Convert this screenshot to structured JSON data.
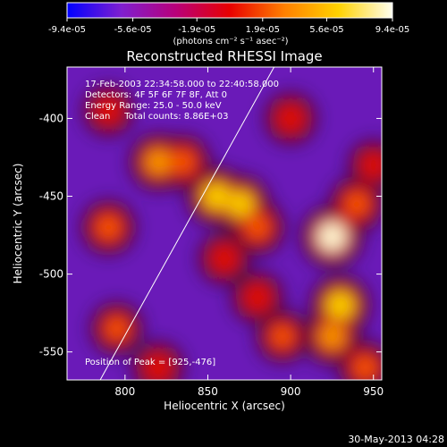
{
  "chart_data": {
    "type": "heatmap",
    "title": "Reconstructed RHESSI Image",
    "xlabel": "Heliocentric X (arcsec)",
    "ylabel": "Heliocentric Y (arcsec)",
    "xlim": [
      765,
      955
    ],
    "ylim": [
      -568,
      -367
    ],
    "x_ticks": [
      "800",
      "850",
      "900",
      "950"
    ],
    "y_ticks": [
      "-400",
      "-450",
      "-500",
      "-550"
    ],
    "x_tick_values": [
      800,
      850,
      900,
      950
    ],
    "y_tick_values": [
      -400,
      -450,
      -500,
      -550
    ],
    "colorbar": {
      "range": [
        -9.4e-05,
        9.4e-05
      ],
      "tick_labels": [
        "-9.4e-05",
        "-5.6e-05",
        "-1.9e-05",
        "1.9e-05",
        "5.6e-05",
        "9.4e-05"
      ],
      "tick_values": [
        -9.4e-05,
        -5.6e-05,
        -1.9e-05,
        1.9e-05,
        5.6e-05,
        9.4e-05
      ],
      "units_label": "(photons cm⁻² s⁻¹ asec⁻²)",
      "colors": [
        "#0000ff",
        "#7f1fd0",
        "#b8007a",
        "#e80000",
        "#ff7f00",
        "#ffd200",
        "#fffff0"
      ]
    },
    "annotations": {
      "time_range": "17-Feb-2003 22:34:58.000 to 22:40:58.000",
      "detectors": "Detectors: 4F 5F 6F 7F 8F, Att 0",
      "energy_range": "Energy Range: 25.0 - 50.0 keV",
      "clean_counts": "Clean     Total counts: 8.86E+03",
      "peak_position": "Position of Peak = [925,-476]"
    },
    "limb_line": {
      "x": [
        785,
        890
      ],
      "y": [
        -568,
        -367
      ]
    },
    "bright_regions": [
      {
        "x": 790,
        "y": -395,
        "level": 0.4
      },
      {
        "x": 790,
        "y": -470,
        "level": 0.6
      },
      {
        "x": 820,
        "y": -428,
        "level": 0.75
      },
      {
        "x": 835,
        "y": -428,
        "level": 0.6
      },
      {
        "x": 795,
        "y": -535,
        "level": 0.5
      },
      {
        "x": 820,
        "y": -560,
        "level": 0.45
      },
      {
        "x": 855,
        "y": -450,
        "level": 0.85
      },
      {
        "x": 870,
        "y": -455,
        "level": 0.8
      },
      {
        "x": 880,
        "y": -470,
        "level": 0.6
      },
      {
        "x": 860,
        "y": -490,
        "level": 0.45
      },
      {
        "x": 880,
        "y": -515,
        "level": 0.45
      },
      {
        "x": 895,
        "y": -540,
        "level": 0.5
      },
      {
        "x": 925,
        "y": -476,
        "level": 1.0
      },
      {
        "x": 930,
        "y": -520,
        "level": 0.9
      },
      {
        "x": 940,
        "y": -455,
        "level": 0.6
      },
      {
        "x": 925,
        "y": -540,
        "level": 0.75
      },
      {
        "x": 900,
        "y": -400,
        "level": 0.45
      },
      {
        "x": 945,
        "y": -560,
        "level": 0.55
      },
      {
        "x": 950,
        "y": -430,
        "level": 0.35
      }
    ]
  },
  "footer": {
    "timestamp": "30-May-2013 04:28"
  }
}
